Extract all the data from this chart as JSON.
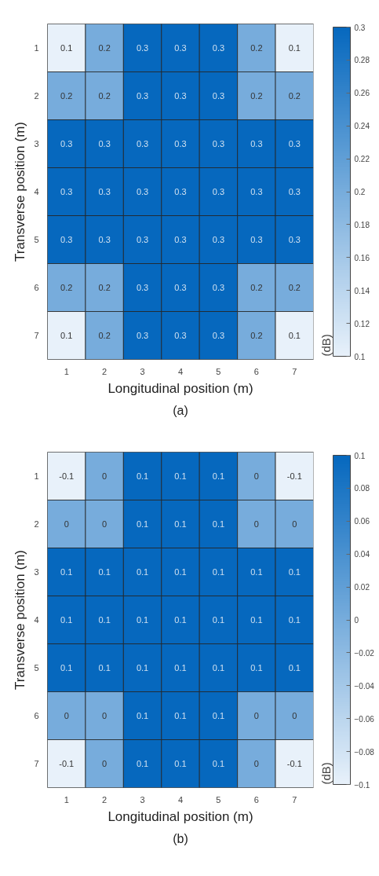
{
  "chart_data": [
    {
      "type": "heatmap",
      "xlabel": "Longitudinal position (m)",
      "ylabel": "Transverse position (m)",
      "clabel": "(dB)",
      "categories": [
        "1",
        "2",
        "3",
        "4",
        "5",
        "6",
        "7"
      ],
      "y_categories": [
        "1",
        "2",
        "3",
        "4",
        "5",
        "6",
        "7"
      ],
      "cells": [
        [
          0.1,
          0.2,
          0.3,
          0.3,
          0.3,
          0.2,
          0.1
        ],
        [
          0.2,
          0.2,
          0.3,
          0.3,
          0.3,
          0.2,
          0.2
        ],
        [
          0.3,
          0.3,
          0.3,
          0.3,
          0.3,
          0.3,
          0.3
        ],
        [
          0.3,
          0.3,
          0.3,
          0.3,
          0.3,
          0.3,
          0.3
        ],
        [
          0.3,
          0.3,
          0.3,
          0.3,
          0.3,
          0.3,
          0.3
        ],
        [
          0.2,
          0.2,
          0.3,
          0.3,
          0.3,
          0.2,
          0.2
        ],
        [
          0.1,
          0.2,
          0.3,
          0.3,
          0.3,
          0.2,
          0.1
        ]
      ],
      "clim": [
        0.1,
        0.3
      ],
      "cticks": [
        0.1,
        0.12,
        0.14,
        0.16,
        0.18,
        0.2,
        0.22,
        0.24,
        0.26,
        0.28,
        0.3
      ],
      "data_labels": true,
      "annotations": [
        "(a)"
      ]
    },
    {
      "type": "heatmap",
      "xlabel": "Longitudinal position (m)",
      "ylabel": "Transverse position (m)",
      "clabel": "(dB)",
      "categories": [
        "1",
        "2",
        "3",
        "4",
        "5",
        "6",
        "7"
      ],
      "y_categories": [
        "1",
        "2",
        "3",
        "4",
        "5",
        "6",
        "7"
      ],
      "cells": [
        [
          -0.1,
          0,
          0.1,
          0.1,
          0.1,
          0,
          -0.1
        ],
        [
          0,
          0,
          0.1,
          0.1,
          0.1,
          0,
          0
        ],
        [
          0.1,
          0.1,
          0.1,
          0.1,
          0.1,
          0.1,
          0.1
        ],
        [
          0.1,
          0.1,
          0.1,
          0.1,
          0.1,
          0.1,
          0.1
        ],
        [
          0.1,
          0.1,
          0.1,
          0.1,
          0.1,
          0.1,
          0.1
        ],
        [
          0,
          0,
          0.1,
          0.1,
          0.1,
          0,
          0
        ],
        [
          -0.1,
          0,
          0.1,
          0.1,
          0.1,
          0,
          -0.1
        ]
      ],
      "clim": [
        -0.1,
        0.1
      ],
      "cticks": [
        -0.1,
        -0.08,
        -0.06,
        -0.04,
        -0.02,
        0,
        0.02,
        0.04,
        0.06,
        0.08,
        0.1
      ],
      "data_labels": true,
      "annotations": [
        "(b)"
      ]
    }
  ]
}
